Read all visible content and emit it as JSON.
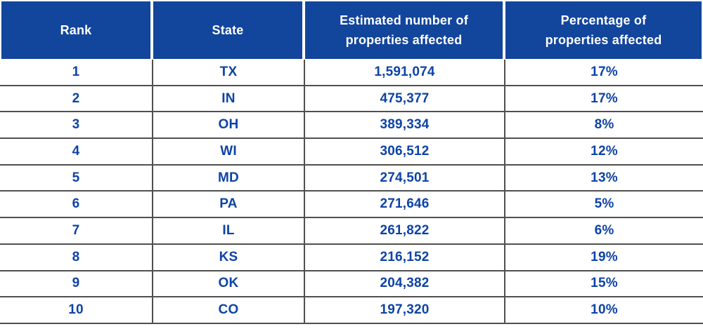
{
  "chart_data": {
    "type": "table",
    "columns": [
      "Rank",
      "State",
      "Estimated number of properties affected",
      "Percentage of properties affected"
    ],
    "rows": [
      [
        1,
        "TX",
        1591074,
        "17%"
      ],
      [
        2,
        "IN",
        475377,
        "17%"
      ],
      [
        3,
        "OH",
        389334,
        "8%"
      ],
      [
        4,
        "WI",
        306512,
        "12%"
      ],
      [
        5,
        "MD",
        274501,
        "13%"
      ],
      [
        6,
        "PA",
        271646,
        "5%"
      ],
      [
        7,
        "IL",
        261822,
        "6%"
      ],
      [
        8,
        "KS",
        216152,
        "19%"
      ],
      [
        9,
        "OK",
        204382,
        "15%"
      ],
      [
        10,
        "CO",
        197320,
        "10%"
      ]
    ],
    "legend_position": "none",
    "grid": true
  },
  "colors": {
    "header_bg": "#12459c",
    "header_text": "#ffffff",
    "cell_text": "#0d43a6",
    "grid_line": "#4f4f4f",
    "page_bg": "#ffffff"
  },
  "table": {
    "columns": [
      {
        "line1": "Rank",
        "line2": ""
      },
      {
        "line1": "State",
        "line2": ""
      },
      {
        "line1": "Estimated number of",
        "line2": "properties affected"
      },
      {
        "line1": "Percentage of",
        "line2": "properties affected"
      }
    ],
    "rows": [
      {
        "rank": "1",
        "state": "TX",
        "properties": "1,591,074",
        "percentage": "17%"
      },
      {
        "rank": "2",
        "state": "IN",
        "properties": "475,377",
        "percentage": "17%"
      },
      {
        "rank": "3",
        "state": "OH",
        "properties": "389,334",
        "percentage": "8%"
      },
      {
        "rank": "4",
        "state": "WI",
        "properties": "306,512",
        "percentage": "12%"
      },
      {
        "rank": "5",
        "state": "MD",
        "properties": "274,501",
        "percentage": "13%"
      },
      {
        "rank": "6",
        "state": "PA",
        "properties": "271,646",
        "percentage": "5%"
      },
      {
        "rank": "7",
        "state": "IL",
        "properties": "261,822",
        "percentage": "6%"
      },
      {
        "rank": "8",
        "state": "KS",
        "properties": "216,152",
        "percentage": "19%"
      },
      {
        "rank": "9",
        "state": "OK",
        "properties": "204,382",
        "percentage": "15%"
      },
      {
        "rank": "10",
        "state": "CO",
        "properties": "197,320",
        "percentage": "10%"
      }
    ]
  }
}
